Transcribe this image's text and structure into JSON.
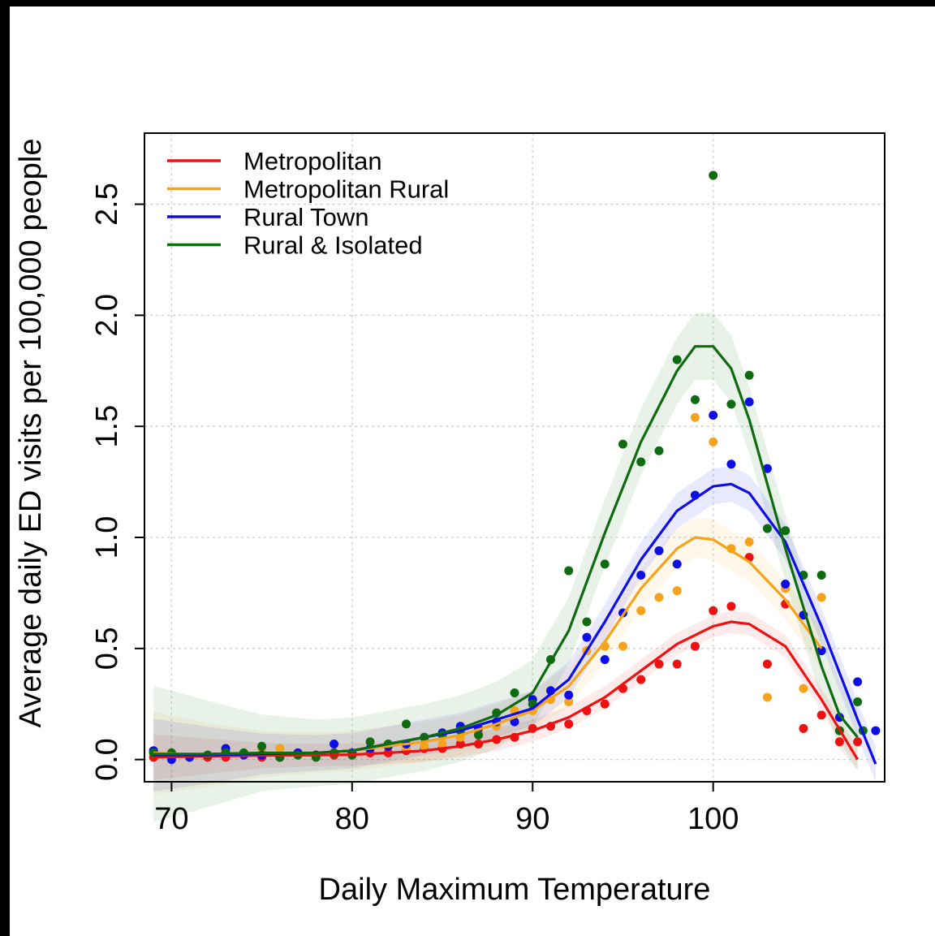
{
  "chart_data": {
    "type": "line",
    "title": "",
    "xlabel": "Daily Maximum Temperature",
    "ylabel": "Average daily ED visits per 100,000 people",
    "xlim": [
      68.5,
      109.5
    ],
    "ylim": [
      -0.1,
      2.82
    ],
    "x_ticks": [
      70,
      80,
      90,
      100
    ],
    "x_tick_labels": [
      "70",
      "80",
      "90",
      "100"
    ],
    "y_ticks": [
      0,
      0.5,
      1,
      1.5,
      2,
      2.5
    ],
    "y_tick_labels": [
      "0.0",
      "0.5",
      "1.0",
      "1.5",
      "2.0",
      "2.5"
    ],
    "grid": true,
    "legend_position": "top-left",
    "series": [
      {
        "name": "Metropolitan",
        "color": "#ee1111",
        "points": [
          [
            69,
            0.01
          ],
          [
            70,
            0.02
          ],
          [
            71,
            0.01
          ],
          [
            72,
            0.01
          ],
          [
            73,
            0.01
          ],
          [
            74,
            0.02
          ],
          [
            75,
            0.01
          ],
          [
            76,
            0.01
          ],
          [
            77,
            0.02
          ],
          [
            78,
            0.02
          ],
          [
            79,
            0.02
          ],
          [
            80,
            0.02
          ],
          [
            81,
            0.03
          ],
          [
            82,
            0.03
          ],
          [
            83,
            0.04
          ],
          [
            84,
            0.05
          ],
          [
            85,
            0.05
          ],
          [
            86,
            0.07
          ],
          [
            87,
            0.07
          ],
          [
            88,
            0.09
          ],
          [
            89,
            0.1
          ],
          [
            90,
            0.14
          ],
          [
            91,
            0.15
          ],
          [
            92,
            0.16
          ],
          [
            93,
            0.22
          ],
          [
            94,
            0.25
          ],
          [
            95,
            0.32
          ],
          [
            96,
            0.36
          ],
          [
            97,
            0.43
          ],
          [
            98,
            0.43
          ],
          [
            99,
            0.51
          ],
          [
            100,
            0.67
          ],
          [
            101,
            0.69
          ],
          [
            102,
            0.91
          ],
          [
            103,
            0.43
          ],
          [
            104,
            0.7
          ],
          [
            105,
            0.14
          ],
          [
            106,
            0.2
          ],
          [
            107,
            0.08
          ],
          [
            108,
            0.08
          ]
        ],
        "fit": [
          [
            69,
            0.01
          ],
          [
            72,
            0.015
          ],
          [
            75,
            0.018
          ],
          [
            78,
            0.02
          ],
          [
            80,
            0.022
          ],
          [
            82,
            0.03
          ],
          [
            84,
            0.04
          ],
          [
            86,
            0.06
          ],
          [
            88,
            0.09
          ],
          [
            90,
            0.13
          ],
          [
            92,
            0.19
          ],
          [
            94,
            0.28
          ],
          [
            96,
            0.4
          ],
          [
            98,
            0.52
          ],
          [
            100,
            0.6
          ],
          [
            101,
            0.62
          ],
          [
            102,
            0.61
          ],
          [
            104,
            0.51
          ],
          [
            106,
            0.27
          ],
          [
            108,
            0.0
          ]
        ],
        "band": 0.05
      },
      {
        "name": "Metropolitan Rural",
        "color": "#f5a31a",
        "points": [
          [
            69,
            0.03
          ],
          [
            70,
            0.02
          ],
          [
            71,
            0.01
          ],
          [
            72,
            0.02
          ],
          [
            73,
            0.04
          ],
          [
            74,
            0.02
          ],
          [
            75,
            0.04
          ],
          [
            76,
            0.05
          ],
          [
            77,
            0.03
          ],
          [
            78,
            0.02
          ],
          [
            79,
            0.03
          ],
          [
            80,
            0.03
          ],
          [
            81,
            0.05
          ],
          [
            82,
            0.07
          ],
          [
            83,
            0.05
          ],
          [
            84,
            0.06
          ],
          [
            85,
            0.07
          ],
          [
            86,
            0.1
          ],
          [
            87,
            0.12
          ],
          [
            88,
            0.15
          ],
          [
            89,
            0.22
          ],
          [
            90,
            0.22
          ],
          [
            91,
            0.27
          ],
          [
            92,
            0.26
          ],
          [
            93,
            0.49
          ],
          [
            94,
            0.51
          ],
          [
            95,
            0.51
          ],
          [
            96,
            0.67
          ],
          [
            97,
            0.73
          ],
          [
            98,
            0.76
          ],
          [
            99,
            1.54
          ],
          [
            100,
            1.43
          ],
          [
            101,
            0.95
          ],
          [
            102,
            0.98
          ],
          [
            103,
            0.28
          ],
          [
            104,
            0.77
          ],
          [
            105,
            0.32
          ],
          [
            106,
            0.73
          ]
        ],
        "fit": [
          [
            69,
            0.03
          ],
          [
            72,
            0.02
          ],
          [
            75,
            0.025
          ],
          [
            78,
            0.03
          ],
          [
            80,
            0.04
          ],
          [
            82,
            0.06
          ],
          [
            84,
            0.08
          ],
          [
            86,
            0.11
          ],
          [
            88,
            0.16
          ],
          [
            90,
            0.22
          ],
          [
            92,
            0.33
          ],
          [
            94,
            0.53
          ],
          [
            96,
            0.77
          ],
          [
            98,
            0.95
          ],
          [
            99,
            1.0
          ],
          [
            100,
            0.99
          ],
          [
            102,
            0.89
          ],
          [
            104,
            0.72
          ],
          [
            106,
            0.5
          ]
        ],
        "band": 0.09
      },
      {
        "name": "Rural Town",
        "color": "#0d0de6",
        "points": [
          [
            69,
            0.04
          ],
          [
            70,
            0.0
          ],
          [
            71,
            0.01
          ],
          [
            72,
            0.02
          ],
          [
            73,
            0.05
          ],
          [
            74,
            0.02
          ],
          [
            75,
            0.02
          ],
          [
            76,
            0.01
          ],
          [
            77,
            0.03
          ],
          [
            78,
            0.02
          ],
          [
            79,
            0.07
          ],
          [
            80,
            0.03
          ],
          [
            81,
            0.05
          ],
          [
            82,
            0.06
          ],
          [
            83,
            0.07
          ],
          [
            84,
            0.1
          ],
          [
            85,
            0.12
          ],
          [
            86,
            0.15
          ],
          [
            87,
            0.14
          ],
          [
            88,
            0.17
          ],
          [
            89,
            0.17
          ],
          [
            90,
            0.27
          ],
          [
            91,
            0.31
          ],
          [
            92,
            0.29
          ],
          [
            93,
            0.55
          ],
          [
            94,
            0.45
          ],
          [
            95,
            0.66
          ],
          [
            96,
            0.83
          ],
          [
            97,
            0.94
          ],
          [
            98,
            0.88
          ],
          [
            99,
            1.19
          ],
          [
            100,
            1.55
          ],
          [
            101,
            1.33
          ],
          [
            102,
            1.61
          ],
          [
            103,
            1.31
          ],
          [
            104,
            0.79
          ],
          [
            105,
            0.65
          ],
          [
            106,
            0.49
          ],
          [
            107,
            0.19
          ],
          [
            108,
            0.35
          ],
          [
            109,
            0.13
          ]
        ],
        "fit": [
          [
            69,
            0.02
          ],
          [
            72,
            0.02
          ],
          [
            75,
            0.025
          ],
          [
            78,
            0.03
          ],
          [
            80,
            0.04
          ],
          [
            82,
            0.07
          ],
          [
            84,
            0.1
          ],
          [
            86,
            0.13
          ],
          [
            88,
            0.18
          ],
          [
            90,
            0.23
          ],
          [
            92,
            0.36
          ],
          [
            94,
            0.62
          ],
          [
            96,
            0.9
          ],
          [
            98,
            1.12
          ],
          [
            100,
            1.23
          ],
          [
            101,
            1.24
          ],
          [
            102,
            1.2
          ],
          [
            104,
            0.98
          ],
          [
            106,
            0.6
          ],
          [
            108,
            0.18
          ],
          [
            109,
            -0.02
          ]
        ],
        "band": 0.08
      },
      {
        "name": "Rural  & Isolated",
        "color": "#0f6b10",
        "points": [
          [
            69,
            0.03
          ],
          [
            70,
            0.03
          ],
          [
            72,
            0.02
          ],
          [
            73,
            0.03
          ],
          [
            74,
            0.03
          ],
          [
            75,
            0.06
          ],
          [
            76,
            0.01
          ],
          [
            77,
            0.02
          ],
          [
            78,
            0.01
          ],
          [
            79,
            0.03
          ],
          [
            80,
            0.02
          ],
          [
            81,
            0.08
          ],
          [
            82,
            0.07
          ],
          [
            83,
            0.16
          ],
          [
            84,
            0.1
          ],
          [
            85,
            0.11
          ],
          [
            86,
            0.13
          ],
          [
            87,
            0.11
          ],
          [
            88,
            0.21
          ],
          [
            89,
            0.3
          ],
          [
            90,
            0.25
          ],
          [
            91,
            0.45
          ],
          [
            92,
            0.85
          ],
          [
            93,
            0.62
          ],
          [
            94,
            0.88
          ],
          [
            95,
            1.42
          ],
          [
            96,
            1.34
          ],
          [
            97,
            1.39
          ],
          [
            98,
            1.8
          ],
          [
            99,
            1.62
          ],
          [
            100,
            2.63
          ],
          [
            101,
            1.6
          ],
          [
            102,
            1.73
          ],
          [
            103,
            1.04
          ],
          [
            104,
            1.03
          ],
          [
            105,
            0.83
          ],
          [
            106,
            0.83
          ],
          [
            107,
            0.13
          ],
          [
            108,
            0.26
          ],
          [
            108.3,
            0.13
          ]
        ],
        "fit": [
          [
            69,
            0.025
          ],
          [
            72,
            0.025
          ],
          [
            75,
            0.03
          ],
          [
            78,
            0.03
          ],
          [
            80,
            0.04
          ],
          [
            82,
            0.07
          ],
          [
            84,
            0.1
          ],
          [
            86,
            0.14
          ],
          [
            88,
            0.2
          ],
          [
            90,
            0.3
          ],
          [
            92,
            0.58
          ],
          [
            94,
            1.02
          ],
          [
            96,
            1.43
          ],
          [
            98,
            1.75
          ],
          [
            99,
            1.86
          ],
          [
            100,
            1.86
          ],
          [
            101,
            1.76
          ],
          [
            102,
            1.53
          ],
          [
            104,
            0.95
          ],
          [
            106,
            0.42
          ],
          [
            107,
            0.2
          ],
          [
            108,
            0.1
          ]
        ],
        "band": 0.15
      }
    ]
  }
}
